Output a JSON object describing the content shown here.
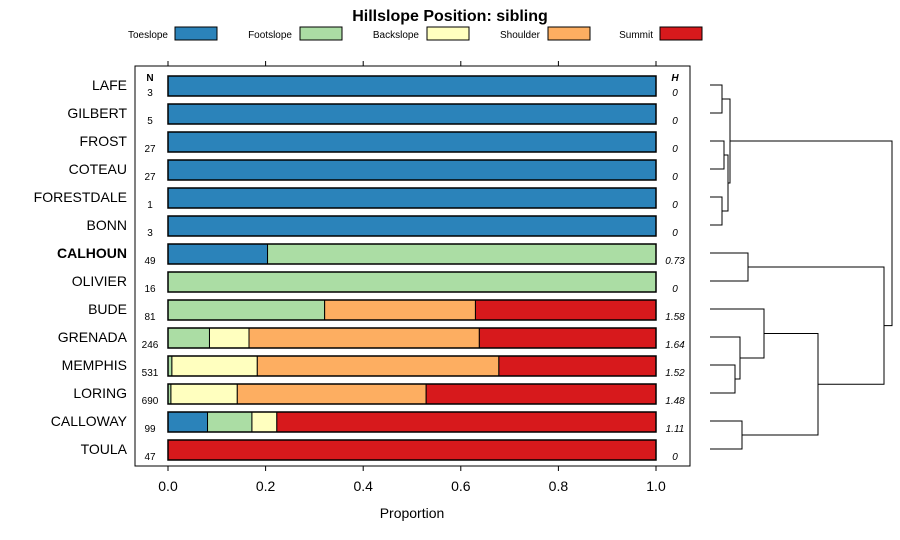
{
  "chart_data": {
    "type": "bar",
    "stacked": true,
    "orientation": "horizontal",
    "title": "Hillslope Position: sibling",
    "xlabel": "Proportion",
    "xlim": [
      0,
      1
    ],
    "xticks": [
      "0.0",
      "0.2",
      "0.4",
      "0.6",
      "0.8",
      "1.0"
    ],
    "legend_position": "top",
    "n_header": "N",
    "h_header": "H",
    "highlighted_category": "CALHOUN",
    "series": [
      {
        "name": "Toeslope",
        "color": "#2B83BA"
      },
      {
        "name": "Footslope",
        "color": "#ABDDA4"
      },
      {
        "name": "Backslope",
        "color": "#FFFFBF"
      },
      {
        "name": "Shoulder",
        "color": "#FDAE61"
      },
      {
        "name": "Summit",
        "color": "#D7191C"
      }
    ],
    "rows": [
      {
        "category": "LAFE",
        "n": "3",
        "h": "0",
        "values": [
          1,
          0,
          0,
          0,
          0
        ]
      },
      {
        "category": "GILBERT",
        "n": "5",
        "h": "0",
        "values": [
          1,
          0,
          0,
          0,
          0
        ]
      },
      {
        "category": "FROST",
        "n": "27",
        "h": "0",
        "values": [
          1,
          0,
          0,
          0,
          0
        ]
      },
      {
        "category": "COTEAU",
        "n": "27",
        "h": "0",
        "values": [
          1,
          0,
          0,
          0,
          0
        ]
      },
      {
        "category": "FORESTDALE",
        "n": "1",
        "h": "0",
        "values": [
          1,
          0,
          0,
          0,
          0
        ]
      },
      {
        "category": "BONN",
        "n": "3",
        "h": "0",
        "values": [
          1,
          0,
          0,
          0,
          0
        ]
      },
      {
        "category": "CALHOUN",
        "n": "49",
        "h": "0.73",
        "values": [
          0.204,
          0.796,
          0,
          0,
          0
        ]
      },
      {
        "category": "OLIVIER",
        "n": "16",
        "h": "0",
        "values": [
          0,
          1,
          0,
          0,
          0
        ]
      },
      {
        "category": "BUDE",
        "n": "81",
        "h": "1.58",
        "values": [
          0,
          0.321,
          0,
          0.309,
          0.37
        ]
      },
      {
        "category": "GRENADA",
        "n": "246",
        "h": "1.64",
        "values": [
          0,
          0.085,
          0.081,
          0.472,
          0.362
        ]
      },
      {
        "category": "MEMPHIS",
        "n": "531",
        "h": "1.52",
        "values": [
          0,
          0.008,
          0.175,
          0.495,
          0.322
        ]
      },
      {
        "category": "LORING",
        "n": "690",
        "h": "1.48",
        "values": [
          0,
          0.006,
          0.136,
          0.387,
          0.471
        ]
      },
      {
        "category": "CALLOWAY",
        "n": "99",
        "h": "1.11",
        "values": [
          0.081,
          0.091,
          0.051,
          0.0,
          0.777
        ]
      },
      {
        "category": "TOULA",
        "n": "47",
        "h": "0",
        "values": [
          0,
          0,
          0,
          0,
          1
        ]
      }
    ],
    "dendrogram": {
      "type": "hierarchical-clustering",
      "leaves": [
        "LAFE",
        "GILBERT",
        "FROST",
        "COTEAU",
        "FORESTDALE",
        "BONN",
        "CALHOUN",
        "OLIVIER",
        "BUDE",
        "GRENADA",
        "MEMPHIS",
        "LORING",
        "CALLOWAY",
        "TOULA"
      ]
    }
  }
}
